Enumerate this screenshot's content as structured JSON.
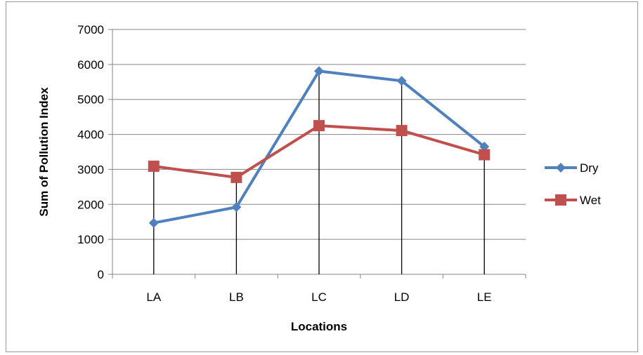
{
  "chart_data": {
    "type": "line",
    "categories": [
      "LA",
      "LB",
      "LC",
      "LD",
      "LE"
    ],
    "series": [
      {
        "name": "Dry",
        "values": [
          1470,
          1920,
          5810,
          5530,
          3650
        ],
        "color": "#4f81bd",
        "marker": "diamond"
      },
      {
        "name": "Wet",
        "values": [
          3090,
          2770,
          4250,
          4110,
          3420
        ],
        "color": "#c0504d",
        "marker": "square"
      }
    ],
    "title": "",
    "xlabel": "Locations",
    "ylabel": "Sum of Pollution Index",
    "ylim": [
      0,
      7000
    ],
    "yticks": [
      0,
      1000,
      2000,
      3000,
      4000,
      5000,
      6000,
      7000
    ],
    "grid": "horizontal",
    "drop_lines": true,
    "legend_position": "right",
    "gridline_color": "#868686",
    "axis_color": "#868686"
  }
}
